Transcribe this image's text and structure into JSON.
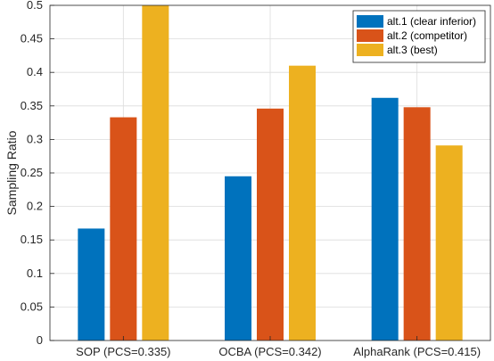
{
  "chart_data": {
    "type": "bar",
    "title": "",
    "xlabel": "",
    "ylabel": "Sampling Ratio",
    "ylim": [
      0,
      0.5
    ],
    "yticks": [
      "0",
      "0.05",
      "0.1",
      "0.15",
      "0.2",
      "0.25",
      "0.3",
      "0.35",
      "0.4",
      "0.45",
      "0.5"
    ],
    "grid": true,
    "legend_position": "top-right",
    "categories": [
      "SOP (PCS=0.335)",
      "OCBA (PCS=0.342)",
      "AlphaRank (PCS=0.415)"
    ],
    "series": [
      {
        "name": "alt.1 (clear inferior)",
        "color": "#0072BD",
        "values": [
          0.167,
          0.245,
          0.362
        ]
      },
      {
        "name": "alt.2 (competitor)",
        "color": "#D95319",
        "values": [
          0.333,
          0.346,
          0.348
        ]
      },
      {
        "name": "alt.3 (best)",
        "color": "#EDB120",
        "values": [
          0.5,
          0.41,
          0.291
        ]
      }
    ]
  }
}
